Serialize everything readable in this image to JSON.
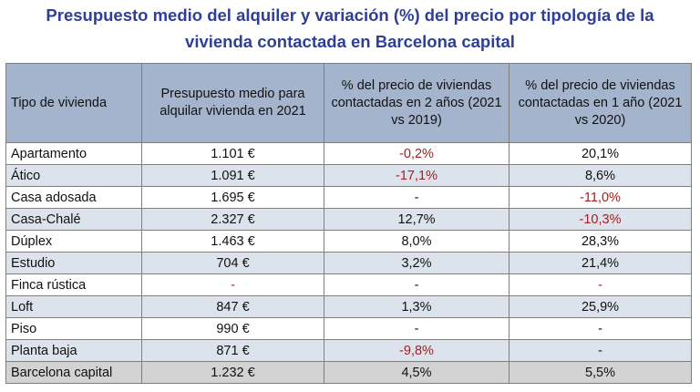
{
  "title_line1": "Presupuesto medio del alquiler y variación (%) del precio por tipología de la",
  "title_line2": "vivienda contactada en Barcelona capital",
  "chart_data": {
    "type": "table",
    "columns": [
      "Tipo de vivienda",
      "Presupuesto medio para alquilar vivienda en 2021",
      "% del precio de viviendas contactadas en 2 años (2021 vs 2019)",
      "% del precio de viviendas contactadas en 1 año (2021 vs 2020)"
    ],
    "rows": [
      {
        "tipo": "Apartamento",
        "presupuesto": "1.101 €",
        "var2": "-0,2%",
        "var1": "20,1%"
      },
      {
        "tipo": "Ático",
        "presupuesto": "1.091 €",
        "var2": "-17,1%",
        "var1": "8,6%"
      },
      {
        "tipo": "Casa adosada",
        "presupuesto": "1.695 €",
        "var2": "-",
        "var1": "-11,0%"
      },
      {
        "tipo": "Casa-Chalé",
        "presupuesto": "2.327 €",
        "var2": "12,7%",
        "var1": "-10,3%"
      },
      {
        "tipo": "Dúplex",
        "presupuesto": "1.463 €",
        "var2": "8,0%",
        "var1": "28,3%"
      },
      {
        "tipo": "Estudio",
        "presupuesto": "704 €",
        "var2": "3,2%",
        "var1": "21,4%"
      },
      {
        "tipo": "Finca rústica",
        "presupuesto": "-",
        "var2": "-",
        "var1": "-"
      },
      {
        "tipo": "Loft",
        "presupuesto": "847 €",
        "var2": "1,3%",
        "var1": "25,9%"
      },
      {
        "tipo": "Piso",
        "presupuesto": "990 €",
        "var2": "-",
        "var1": "-"
      },
      {
        "tipo": "Planta baja",
        "presupuesto": "871 €",
        "var2": "-9,8%",
        "var1": "-"
      }
    ],
    "total": {
      "tipo": "Barcelona capital",
      "presupuesto": "1.232 €",
      "var2": "4,5%",
      "var1": "5,5%"
    }
  },
  "colors": {
    "title": "#2e3f99",
    "header_bg": "#a4b4cc",
    "alt_row_bg": "#dde3ec",
    "total_row_bg": "#d4d3d3",
    "negative_text": "#a32020",
    "highlighted_dashes": [
      "Finca rústica.presupuesto",
      "Finca rústica.var1"
    ]
  }
}
